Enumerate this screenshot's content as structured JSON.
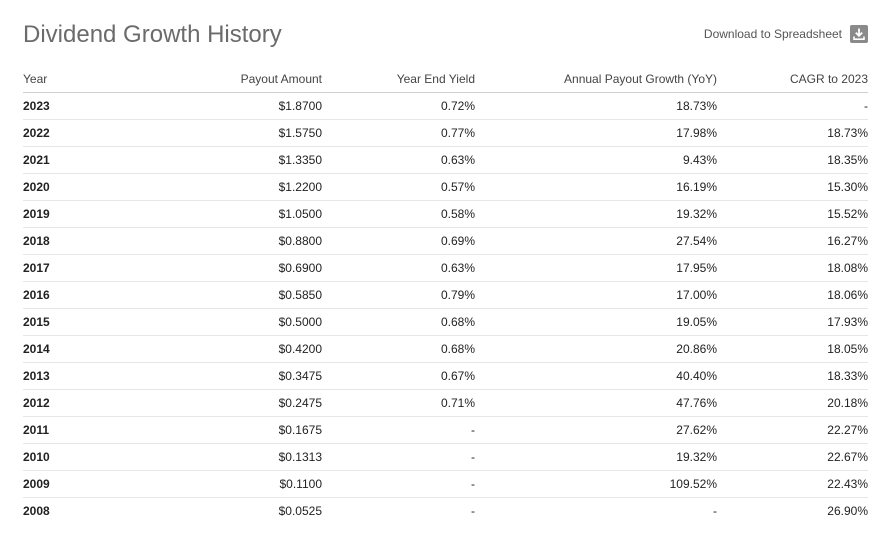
{
  "header": {
    "title": "Dividend Growth History",
    "download_label": "Download to Spreadsheet",
    "download_icon": "download-icon"
  },
  "table": {
    "columns": [
      "Year",
      "Payout Amount",
      "Year End Yield",
      "Annual Payout Growth (YoY)",
      "CAGR to 2023"
    ],
    "rows": [
      {
        "year": "2023",
        "payout": "$1.8700",
        "yield": "0.72%",
        "growth": "18.73%",
        "cagr": "-"
      },
      {
        "year": "2022",
        "payout": "$1.5750",
        "yield": "0.77%",
        "growth": "17.98%",
        "cagr": "18.73%"
      },
      {
        "year": "2021",
        "payout": "$1.3350",
        "yield": "0.63%",
        "growth": "9.43%",
        "cagr": "18.35%"
      },
      {
        "year": "2020",
        "payout": "$1.2200",
        "yield": "0.57%",
        "growth": "16.19%",
        "cagr": "15.30%"
      },
      {
        "year": "2019",
        "payout": "$1.0500",
        "yield": "0.58%",
        "growth": "19.32%",
        "cagr": "15.52%"
      },
      {
        "year": "2018",
        "payout": "$0.8800",
        "yield": "0.69%",
        "growth": "27.54%",
        "cagr": "16.27%"
      },
      {
        "year": "2017",
        "payout": "$0.6900",
        "yield": "0.63%",
        "growth": "17.95%",
        "cagr": "18.08%"
      },
      {
        "year": "2016",
        "payout": "$0.5850",
        "yield": "0.79%",
        "growth": "17.00%",
        "cagr": "18.06%"
      },
      {
        "year": "2015",
        "payout": "$0.5000",
        "yield": "0.68%",
        "growth": "19.05%",
        "cagr": "17.93%"
      },
      {
        "year": "2014",
        "payout": "$0.4200",
        "yield": "0.68%",
        "growth": "20.86%",
        "cagr": "18.05%"
      },
      {
        "year": "2013",
        "payout": "$0.3475",
        "yield": "0.67%",
        "growth": "40.40%",
        "cagr": "18.33%"
      },
      {
        "year": "2012",
        "payout": "$0.2475",
        "yield": "0.71%",
        "growth": "47.76%",
        "cagr": "20.18%"
      },
      {
        "year": "2011",
        "payout": "$0.1675",
        "yield": "-",
        "growth": "27.62%",
        "cagr": "22.27%"
      },
      {
        "year": "2010",
        "payout": "$0.1313",
        "yield": "-",
        "growth": "19.32%",
        "cagr": "22.67%"
      },
      {
        "year": "2009",
        "payout": "$0.1100",
        "yield": "-",
        "growth": "109.52%",
        "cagr": "22.43%"
      },
      {
        "year": "2008",
        "payout": "$0.0525",
        "yield": "-",
        "growth": "-",
        "cagr": "26.90%"
      }
    ]
  }
}
